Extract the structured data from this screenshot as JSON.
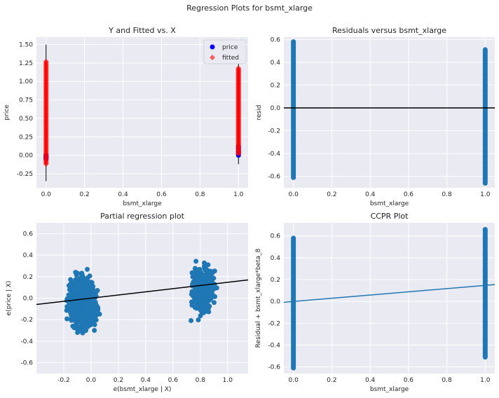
{
  "figure_title": "Regression Plots for bsmt_xlarge",
  "chart_data": [
    {
      "type": "scatter",
      "title": "Y and Fitted vs. X",
      "xlabel": "bsmt_xlarge",
      "ylabel": "price",
      "xlim": [
        -0.05,
        1.05
      ],
      "ylim": [
        -0.44,
        1.6
      ],
      "xticks": [
        "0.0",
        "0.2",
        "0.4",
        "0.6",
        "0.8",
        "1.0"
      ],
      "yticks": [
        "-0.25",
        "0.00",
        "0.25",
        "0.50",
        "0.75",
        "1.00",
        "1.25",
        "1.50"
      ],
      "legend_position": "top-right",
      "series": [
        {
          "name": "price",
          "color": "#0000ff",
          "marker": "circle",
          "groups": [
            {
              "x": 0,
              "range": [
                -0.35,
                1.5
              ]
            },
            {
              "x": 1,
              "range": [
                -0.12,
                1.36
              ]
            }
          ]
        },
        {
          "name": "fitted",
          "color": "#ff0000",
          "marker": "diamond",
          "groups": [
            {
              "x": 0,
              "range": [
                -0.12,
                1.27
              ]
            },
            {
              "x": 1,
              "range": [
                0.02,
                1.18
              ]
            }
          ]
        }
      ],
      "grid": true
    },
    {
      "type": "scatter",
      "title": "Residuals versus bsmt_xlarge",
      "xlabel": "bsmt_xlarge",
      "ylabel": "resid",
      "xlim": [
        -0.05,
        1.05
      ],
      "ylim": [
        -0.7,
        0.62
      ],
      "xticks": [
        "0.0",
        "0.2",
        "0.4",
        "0.6",
        "0.8",
        "1.0"
      ],
      "yticks": [
        "-0.6",
        "-0.4",
        "-0.2",
        "0.0",
        "0.2",
        "0.4",
        "0.6"
      ],
      "reference_line_y": 0,
      "groups": [
        {
          "x": 0,
          "range": [
            -0.61,
            0.58
          ]
        },
        {
          "x": 1,
          "range": [
            -0.66,
            0.51
          ]
        }
      ],
      "grid": true
    },
    {
      "type": "scatter",
      "title": "Partial regression plot",
      "xlabel": "e(bsmt_xlarge | X)",
      "ylabel": "e(price | X)",
      "xlim": [
        -0.4,
        1.15
      ],
      "ylim": [
        -0.7,
        0.7
      ],
      "xticks": [
        "-0.2",
        "0.0",
        "0.2",
        "0.4",
        "0.6",
        "0.8",
        "1.0"
      ],
      "yticks": [
        "-0.6",
        "-0.4",
        "-0.2",
        "0.0",
        "0.2",
        "0.4",
        "0.6"
      ],
      "clusters": [
        {
          "x_center": -0.06,
          "x_range": [
            -0.34,
            0.2
          ],
          "y_range": [
            -0.64,
            0.56
          ]
        },
        {
          "x_center": 0.82,
          "x_range": [
            0.64,
            1.08
          ],
          "y_range": [
            -0.5,
            0.64
          ]
        }
      ],
      "fit_line": {
        "intercept": 0.0,
        "slope": 0.147
      },
      "grid": true
    },
    {
      "type": "scatter",
      "title": "CCPR Plot",
      "xlabel": "bsmt_xlarge",
      "ylabel": "Residual + bsmt_xlarge*beta_8",
      "xlim": [
        -0.05,
        1.05
      ],
      "ylim": [
        -0.66,
        0.72
      ],
      "xticks": [
        "0.0",
        "0.2",
        "0.4",
        "0.6",
        "0.8",
        "1.0"
      ],
      "yticks": [
        "-0.6",
        "-0.4",
        "-0.2",
        "0.0",
        "0.2",
        "0.4",
        "0.6"
      ],
      "groups": [
        {
          "x": 0,
          "range": [
            -0.61,
            0.58
          ]
        },
        {
          "x": 1,
          "range": [
            -0.51,
            0.66
          ]
        }
      ],
      "fit_line": {
        "intercept": 0.0,
        "slope": 0.147
      },
      "grid": true
    }
  ],
  "colors": {
    "panel_bg": "#eaeaf2",
    "grid": "#ffffff",
    "scatter": "#1f77b4",
    "line_black": "#000000",
    "text": "#262626"
  }
}
